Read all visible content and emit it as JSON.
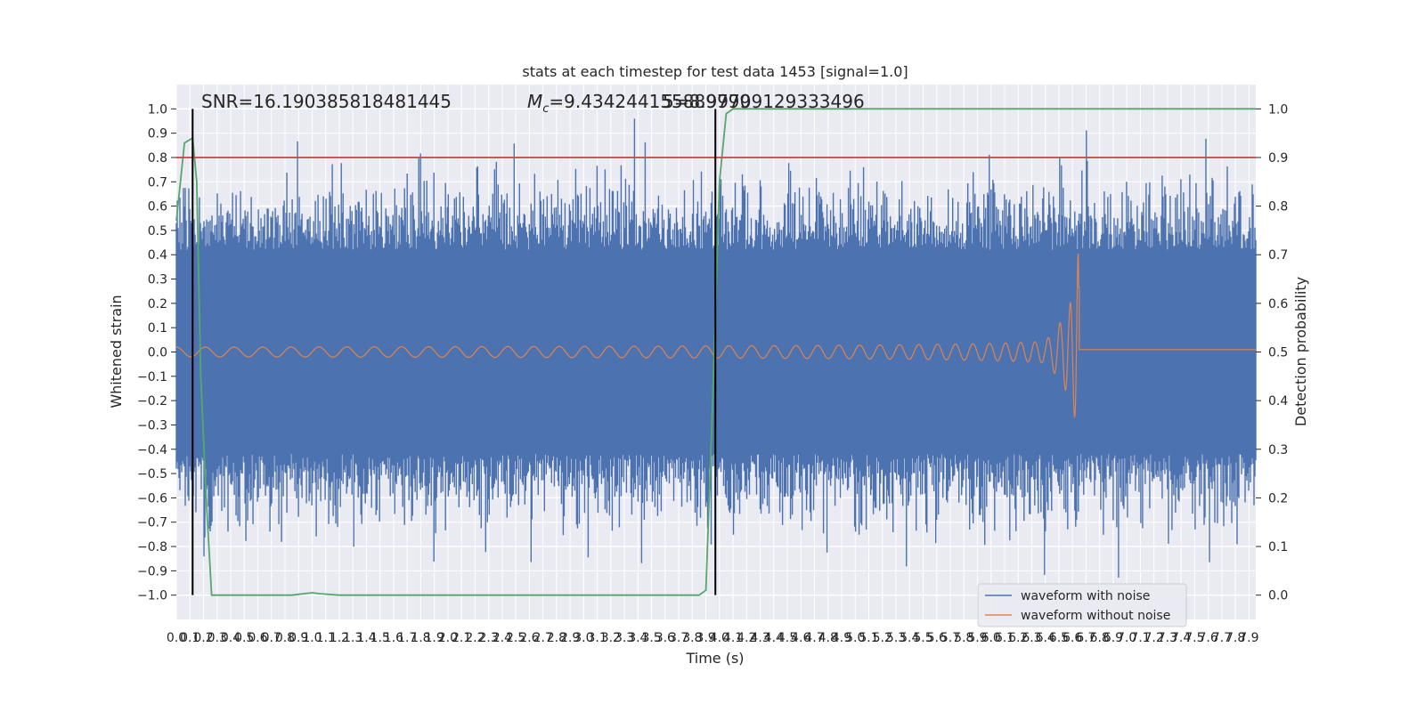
{
  "chart_data": {
    "type": "line",
    "title": "stats at each timestep for test data 1453 [signal=1.0]",
    "xlabel": "Time (s)",
    "ylabel": "Whitened strain",
    "y2label": "Detection probability",
    "xlim": [
      0.0,
      7.95
    ],
    "ylim": [
      -1.1,
      1.1
    ],
    "y2lim": [
      -0.05,
      1.05
    ],
    "x_tick_labels": [
      "0.0",
      "0.1",
      "0.2",
      "0.3",
      "0.4",
      "0.5",
      "0.6",
      "0.7",
      "0.8",
      "0.9",
      "1.0",
      "1.1",
      "1.2",
      "1.3",
      "1.4",
      "1.5",
      "1.6",
      "1.7",
      "1.8",
      "1.9",
      "2.0",
      "2.1",
      "2.2",
      "2.3",
      "2.4",
      "2.5",
      "2.6",
      "2.7",
      "2.8",
      "2.9",
      "3.0",
      "3.1",
      "3.2",
      "3.3",
      "3.4",
      "3.5",
      "3.6",
      "3.7",
      "3.8",
      "3.9",
      "4.0",
      "4.1",
      "4.2",
      "4.3",
      "4.4",
      "4.5",
      "4.6",
      "4.7",
      "4.8",
      "4.9",
      "5.0",
      "5.1",
      "5.2",
      "5.3",
      "5.4",
      "5.5",
      "5.6",
      "5.7",
      "5.8",
      "5.9",
      "6.0",
      "6.1",
      "6.2",
      "6.3",
      "6.4",
      "6.5",
      "6.6",
      "6.7",
      "6.8",
      "6.9",
      "7.0",
      "7.1",
      "7.2",
      "7.3",
      "7.4",
      "7.5",
      "7.6",
      "7.7",
      "7.8",
      "7.9"
    ],
    "y_tick_labels": [
      "1.0",
      "0.9",
      "0.8",
      "0.7",
      "0.6",
      "0.5",
      "0.4",
      "0.3",
      "0.2",
      "0.1",
      "0.0",
      "−0.1",
      "−0.2",
      "−0.3",
      "−0.4",
      "−0.5",
      "−0.6",
      "−0.7",
      "−0.8",
      "−0.9",
      "−1.0"
    ],
    "y2_tick_labels": [
      "1.0",
      "0.9",
      "0.8",
      "0.7",
      "0.6",
      "0.5",
      "0.4",
      "0.3",
      "0.2",
      "0.1",
      "0.0"
    ],
    "annotations": [
      {
        "text": "SNR=16.190385818481445"
      },
      {
        "text": "=9.434244155889799"
      },
      {
        "text": "5=8.99709129333496"
      }
    ],
    "mc_symbol": "M",
    "mc_subscript": "c",
    "vertical_lines_x": [
      0.12,
      3.97
    ],
    "threshold_y2": 0.9,
    "grid": true,
    "legend_position": "lower-right",
    "series": [
      {
        "name": "waveform with noise",
        "color": "#4c72b0",
        "kind": "noise",
        "amplitude": 0.42,
        "max": 0.96,
        "min": -0.98
      },
      {
        "name": "waveform without noise",
        "color": "#dd8452",
        "kind": "chirp",
        "merger_time": 6.65,
        "amplitude_start": 0.02,
        "amplitude_peak": 0.45,
        "post_merger_level": 0.01
      },
      {
        "color": "#55a868",
        "axis": "y2",
        "kind": "probability",
        "x": [
          0.0,
          0.03,
          0.06,
          0.09,
          0.12,
          0.15,
          0.18,
          0.22,
          0.26,
          0.35,
          0.5,
          0.7,
          0.85,
          1.0,
          1.05,
          1.2,
          2.0,
          3.0,
          3.7,
          3.85,
          3.9,
          3.95,
          4.0,
          4.05,
          4.1,
          5.0,
          6.0,
          7.0,
          7.95
        ],
        "values": [
          0.77,
          0.85,
          0.93,
          0.935,
          0.94,
          0.85,
          0.45,
          0.2,
          0.0,
          0.0,
          0.0,
          0.0,
          0.0,
          0.005,
          0.003,
          0.0,
          0.0,
          0.0,
          0.0,
          0.0,
          0.01,
          0.4,
          0.85,
          0.99,
          1.0,
          1.0,
          1.0,
          1.0,
          1.0
        ]
      },
      {
        "color": "#c44e52",
        "axis": "y2",
        "kind": "threshold"
      }
    ]
  }
}
